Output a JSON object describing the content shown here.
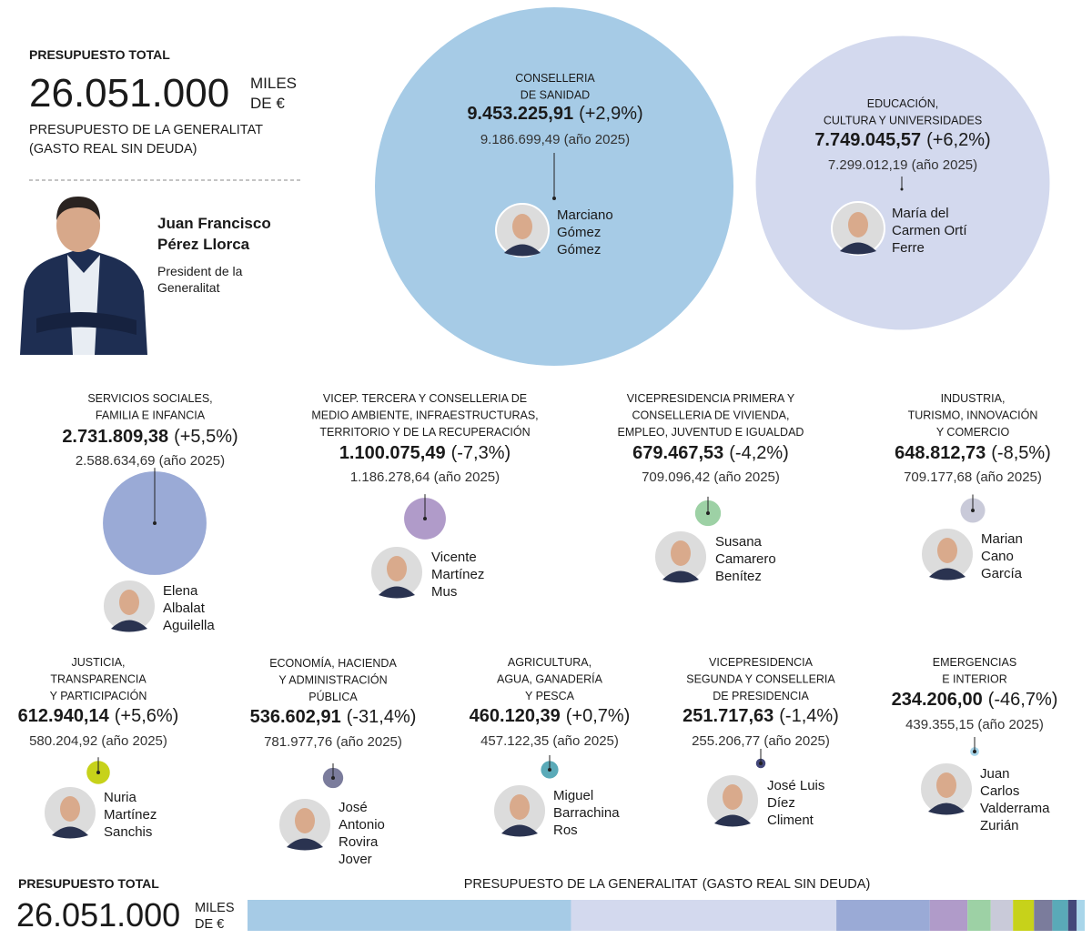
{
  "header": {
    "total_title": "PRESUPUESTO TOTAL",
    "total": {
      "value": 26051000,
      "label": "26.051.000"
    },
    "unit": [
      "MILES",
      "DE €"
    ],
    "subtitle": [
      "PRESUPUESTO DE LA GENERALITAT",
      "(GASTO REAL SIN DEUDA)"
    ]
  },
  "president": {
    "name": [
      "Juan Francisco",
      "Pérez Llorca"
    ],
    "role": [
      "President de la",
      "Generalitat"
    ]
  },
  "departments": [
    {
      "name": [
        "CONSELLERIA",
        "DE SANIDAD"
      ],
      "amount": {
        "value": 9453225.91,
        "label": "9.453.225,91"
      },
      "change": "(+2,9%)",
      "previous": "9.186.699,49 (año 2025)",
      "person": [
        "Marciano",
        "Gómez",
        "Gómez"
      ],
      "color": "#a6cbe6"
    },
    {
      "name": [
        "EDUCACIÓN,",
        "CULTURA Y UNIVERSIDADES"
      ],
      "amount": {
        "value": 7749045.57,
        "label": "7.749.045,57"
      },
      "change": "(+6,2%)",
      "previous": "7.299.012,19 (año 2025)",
      "person": [
        "María del",
        "Carmen Ortí",
        "Ferre"
      ],
      "color": "#d3d9ee"
    },
    {
      "name": [
        "SERVICIOS SOCIALES,",
        "FAMILIA E INFANCIA"
      ],
      "amount": {
        "value": 2731809.38,
        "label": "2.731.809,38"
      },
      "change": "(+5,5%)",
      "previous": "2.588.634,69 (año 2025)",
      "person": [
        "Elena",
        "Albalat",
        "Aguilella"
      ],
      "color": "#9aaad6"
    },
    {
      "name": [
        "VICEP. TERCERA Y CONSELLERIA DE",
        "MEDIO AMBIENTE, INFRAESTRUCTURAS,",
        "TERRITORIO Y DE LA RECUPERACIÓN"
      ],
      "amount": {
        "value": 1100075.49,
        "label": "1.100.075,49"
      },
      "change": "(-7,3%)",
      "previous": "1.186.278,64 (año 2025)",
      "person": [
        "Vicente",
        "Martínez",
        "Mus"
      ],
      "color": "#b09bc9"
    },
    {
      "name": [
        "VICEPRESIDENCIA PRIMERA Y",
        "CONSELLERIA DE VIVIENDA,",
        "EMPLEO, JUVENTUD E IGUALDAD"
      ],
      "amount": {
        "value": 679467.53,
        "label": "679.467,53"
      },
      "change": "(-4,2%)",
      "previous": "709.096,42 (año 2025)",
      "person": [
        "Susana",
        "Camarero",
        "Benítez"
      ],
      "color": "#9dd1a5"
    },
    {
      "name": [
        "INDUSTRIA,",
        "TURISMO, INNOVACIÓN",
        "Y COMERCIO"
      ],
      "amount": {
        "value": 648812.73,
        "label": "648.812,73"
      },
      "change": "(-8,5%)",
      "previous": "709.177,68 (año 2025)",
      "person": [
        "Marian",
        "Cano",
        "García"
      ],
      "color": "#c9cad9"
    },
    {
      "name": [
        "JUSTICIA,",
        "TRANSPARENCIA",
        "Y PARTICIPACIÓN"
      ],
      "amount": {
        "value": 612940.14,
        "label": "612.940,14"
      },
      "change": "(+5,6%)",
      "previous": "580.204,92 (año 2025)",
      "person": [
        "Nuria",
        "Martínez",
        "Sanchis"
      ],
      "color": "#c7d21a"
    },
    {
      "name": [
        "ECONOMÍA, HACIENDA",
        "Y ADMINISTRACIÓN",
        "PÚBLICA"
      ],
      "amount": {
        "value": 536602.91,
        "label": "536.602,91"
      },
      "change": "(-31,4%)",
      "previous": "781.977,76 (año 2025)",
      "person": [
        "José",
        "Antonio",
        "Rovira",
        "Jover"
      ],
      "color": "#7b7c9c"
    },
    {
      "name": [
        "AGRICULTURA,",
        "AGUA, GANADERÍA",
        "Y PESCA"
      ],
      "amount": {
        "value": 460120.39,
        "label": "460.120,39"
      },
      "change": "(+0,7%)",
      "previous": "457.122,35 (año 2025)",
      "person": [
        "Miguel",
        "Barrachina",
        "Ros"
      ],
      "color": "#5aaab8"
    },
    {
      "name": [
        "VICEPRESIDENCIA",
        "SEGUNDA Y CONSELLERIA",
        "DE PRESIDENCIA"
      ],
      "amount": {
        "value": 251717.63,
        "label": "251.717,63"
      },
      "change": "(-1,4%)",
      "previous": "255.206,77 (año 2025)",
      "person": [
        "José Luis",
        "Díez",
        "Climent"
      ],
      "color": "#44487a"
    },
    {
      "name": [
        "EMERGENCIAS",
        "E INTERIOR"
      ],
      "amount": {
        "value": 234206.0,
        "label": "234.206,00"
      },
      "change": "(-46,7%)",
      "previous": "439.355,15 (año 2025)",
      "person": [
        "Juan",
        "Carlos",
        "Valderrama",
        "Zurián"
      ],
      "color": "#a9d6ea"
    }
  ]
}
